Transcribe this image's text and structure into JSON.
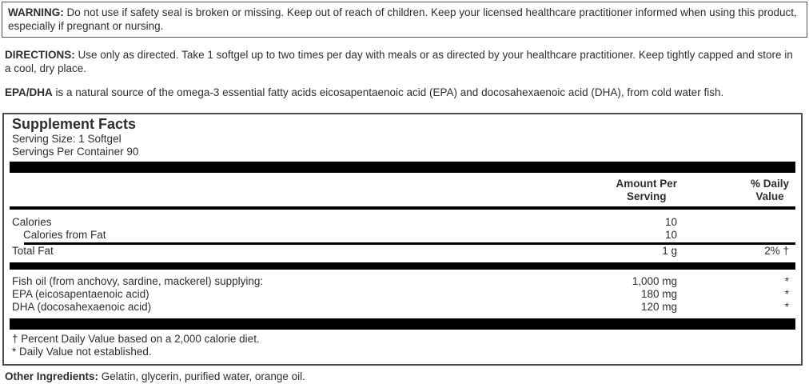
{
  "colors": {
    "text": "#2e2e2e",
    "border": "#4d4d4d",
    "bar": "#000000",
    "background": "#ffffff"
  },
  "paragraphs": {
    "warning": {
      "lead": "WARNING:",
      "text": " Do not use if safety seal is broken or missing. Keep out of reach of children. Keep your licensed healthcare practitioner informed when using this product, especially if pregnant or nursing."
    },
    "directions": {
      "lead": "DIRECTIONS:",
      "text": " Use only as directed. Take 1 softgel up to two times per day with meals or as directed by your healthcare practitioner. Keep tightly capped and store in a cool, dry place."
    },
    "epa_dha": {
      "lead": "EPA/DHA",
      "text": " is a natural source of the omega-3 essential fatty acids eicosapentaenoic acid (EPA) and docosahexaenoic acid (DHA), from cold water fish."
    },
    "other_ingredients": {
      "lead": "Other Ingredients:",
      "text": " Gelatin, glycerin, purified water, orange oil."
    }
  },
  "supplement_facts": {
    "title": "Supplement Facts",
    "serving_size": "Serving Size: 1 Softgel",
    "servings_per_container": "Servings Per Container 90",
    "columns": {
      "amount_header": "Amount Per\nServing",
      "daily_value_header": "% Daily\nValue"
    },
    "rows": [
      {
        "name": "Calories",
        "amount": "10",
        "daily_value": ""
      },
      {
        "name": "Calories from Fat",
        "amount": "10",
        "daily_value": ""
      },
      {
        "name": "Total Fat",
        "amount": "1 g",
        "daily_value": "2% †"
      },
      {
        "name": "Fish oil (from anchovy, sardine, mackerel) supplying:",
        "amount": "1,000 mg",
        "daily_value": "*"
      },
      {
        "name": "EPA (eicosapentaenoic acid)",
        "amount": "180 mg",
        "daily_value": "*"
      },
      {
        "name": "DHA (docosahexaenoic acid)",
        "amount": "120 mg",
        "daily_value": "*"
      }
    ],
    "footnotes": [
      "† Percent Daily Value based on a 2,000 calorie diet.",
      "* Daily Value not established."
    ]
  }
}
